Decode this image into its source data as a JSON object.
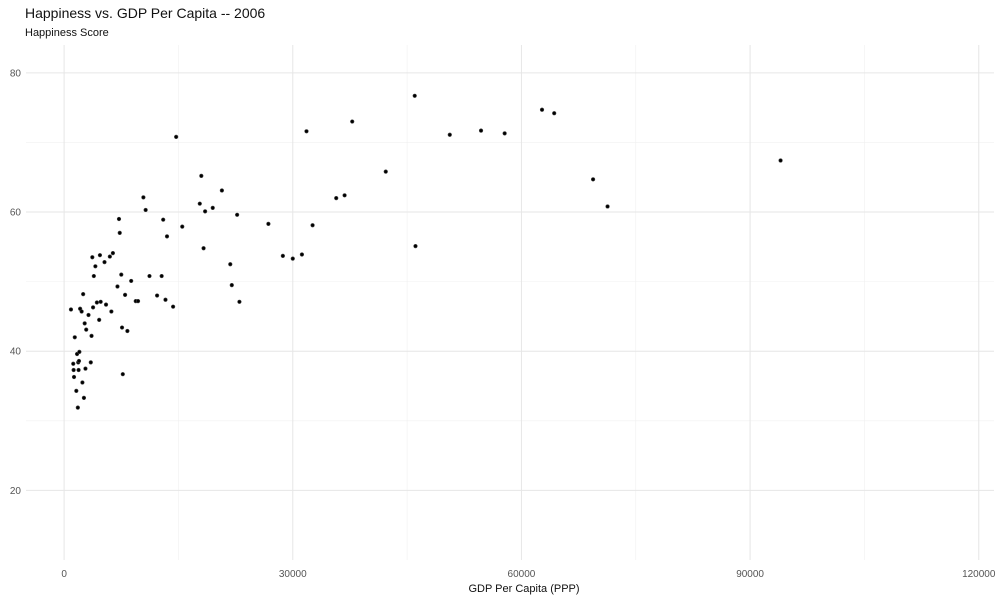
{
  "chart_data": {
    "type": "scatter",
    "title": "Happiness vs. GDP Per Capita -- 2006",
    "subtitle": "Happiness Score",
    "xlabel": "GDP Per Capita (PPP)",
    "ylabel": "",
    "xlim": [
      -5000,
      122000
    ],
    "ylim": [
      10,
      84
    ],
    "x_major_ticks": [
      0,
      30000,
      60000,
      90000,
      120000
    ],
    "x_tick_labels": [
      "0",
      "30000",
      "60000",
      "90000",
      "120000"
    ],
    "x_minor_ticks": [
      15000,
      45000,
      75000,
      105000
    ],
    "y_major_ticks": [
      20,
      40,
      60,
      80
    ],
    "y_tick_labels": [
      "20",
      "40",
      "60",
      "80"
    ],
    "y_minor_ticks": [
      30,
      50,
      70
    ],
    "grid": true,
    "point_color": "#000000",
    "series": [
      {
        "points": [
          [
            900,
            46.0
          ],
          [
            1200,
            38.2
          ],
          [
            1250,
            37.3
          ],
          [
            1300,
            36.3
          ],
          [
            1400,
            42.0
          ],
          [
            1600,
            34.3
          ],
          [
            1700,
            39.6
          ],
          [
            1800,
            31.9
          ],
          [
            1850,
            38.4
          ],
          [
            1900,
            37.3
          ],
          [
            1950,
            38.6
          ],
          [
            2000,
            39.9
          ],
          [
            2100,
            46.1
          ],
          [
            2300,
            45.7
          ],
          [
            2400,
            35.5
          ],
          [
            2500,
            48.2
          ],
          [
            2600,
            33.3
          ],
          [
            2700,
            44.0
          ],
          [
            2800,
            37.5
          ],
          [
            2900,
            43.1
          ],
          [
            3200,
            45.2
          ],
          [
            3500,
            38.4
          ],
          [
            3600,
            42.2
          ],
          [
            3700,
            53.5
          ],
          [
            3800,
            46.3
          ],
          [
            3900,
            50.8
          ],
          [
            4100,
            52.2
          ],
          [
            4300,
            47.0
          ],
          [
            4600,
            44.5
          ],
          [
            4700,
            53.8
          ],
          [
            4800,
            47.1
          ],
          [
            5300,
            52.8
          ],
          [
            5500,
            46.7
          ],
          [
            6000,
            53.6
          ],
          [
            6200,
            45.7
          ],
          [
            6400,
            54.1
          ],
          [
            7000,
            49.3
          ],
          [
            7200,
            59.0
          ],
          [
            7300,
            57.0
          ],
          [
            7500,
            51.0
          ],
          [
            7600,
            43.4
          ],
          [
            7700,
            36.7
          ],
          [
            8000,
            48.1
          ],
          [
            8300,
            42.9
          ],
          [
            8800,
            50.1
          ],
          [
            9400,
            47.2
          ],
          [
            9700,
            47.2
          ],
          [
            10400,
            62.1
          ],
          [
            10700,
            60.3
          ],
          [
            11200,
            50.8
          ],
          [
            12200,
            48.0
          ],
          [
            12800,
            50.8
          ],
          [
            13000,
            58.9
          ],
          [
            13300,
            47.4
          ],
          [
            13500,
            56.5
          ],
          [
            14300,
            46.4
          ],
          [
            14700,
            70.8
          ],
          [
            15500,
            57.9
          ],
          [
            17800,
            61.2
          ],
          [
            18000,
            65.2
          ],
          [
            18300,
            54.8
          ],
          [
            18500,
            60.1
          ],
          [
            19500,
            60.6
          ],
          [
            20700,
            63.1
          ],
          [
            21800,
            52.5
          ],
          [
            22000,
            49.5
          ],
          [
            22700,
            59.6
          ],
          [
            23000,
            47.1
          ],
          [
            26800,
            58.3
          ],
          [
            28700,
            53.7
          ],
          [
            30000,
            53.3
          ],
          [
            31200,
            53.9
          ],
          [
            31800,
            71.6
          ],
          [
            32600,
            58.1
          ],
          [
            35700,
            62.0
          ],
          [
            36800,
            62.4
          ],
          [
            37800,
            73.0
          ],
          [
            42200,
            65.8
          ],
          [
            46000,
            76.7
          ],
          [
            46100,
            55.1
          ],
          [
            50600,
            71.1
          ],
          [
            54700,
            71.7
          ],
          [
            57800,
            71.3
          ],
          [
            62700,
            74.7
          ],
          [
            64300,
            74.2
          ],
          [
            69400,
            64.7
          ],
          [
            71300,
            60.8
          ],
          [
            94000,
            67.4
          ]
        ]
      }
    ]
  }
}
